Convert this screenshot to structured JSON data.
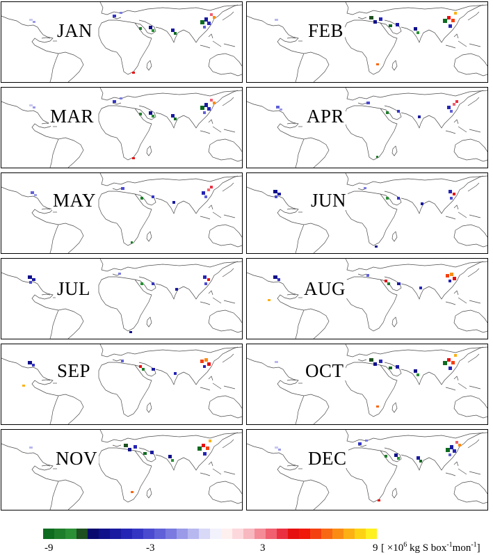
{
  "panels": [
    {
      "month": "JAN"
    },
    {
      "month": "FEB"
    },
    {
      "month": "MAR"
    },
    {
      "month": "APR"
    },
    {
      "month": "MAY"
    },
    {
      "month": "JUN"
    },
    {
      "month": "JUL"
    },
    {
      "month": "AUG"
    },
    {
      "month": "SEP"
    },
    {
      "month": "OCT"
    },
    {
      "month": "NOV"
    },
    {
      "month": "DEC"
    }
  ],
  "colorbar": {
    "min": -9,
    "max": 9,
    "ticks": [
      "-9",
      "-3",
      "3",
      "9"
    ],
    "unit_prefix": "[ ×10",
    "unit_exp": "6",
    "unit_mid": " kg S box",
    "unit_exp2": "-1",
    "unit_mid2": "mon",
    "unit_exp3": "-1",
    "unit_suffix": "]",
    "colors": [
      "#0e6b20",
      "#1e7d2a",
      "#2a8f35",
      "#1d4f1f",
      "#0a0a6e",
      "#10108a",
      "#1a1aa0",
      "#2525b5",
      "#3535c4",
      "#4a4ad0",
      "#6060d8",
      "#7a7ae0",
      "#9a9ae8",
      "#b8b8f0",
      "#d8d8f7",
      "#f2f2fd",
      "#fff0f0",
      "#fcd8dc",
      "#f8b8c0",
      "#f48c98",
      "#f06070",
      "#ea3040",
      "#e61010",
      "#f01808",
      "#f44010",
      "#f86814",
      "#fa8c14",
      "#fcb014",
      "#fdd214",
      "#fff020"
    ]
  }
}
